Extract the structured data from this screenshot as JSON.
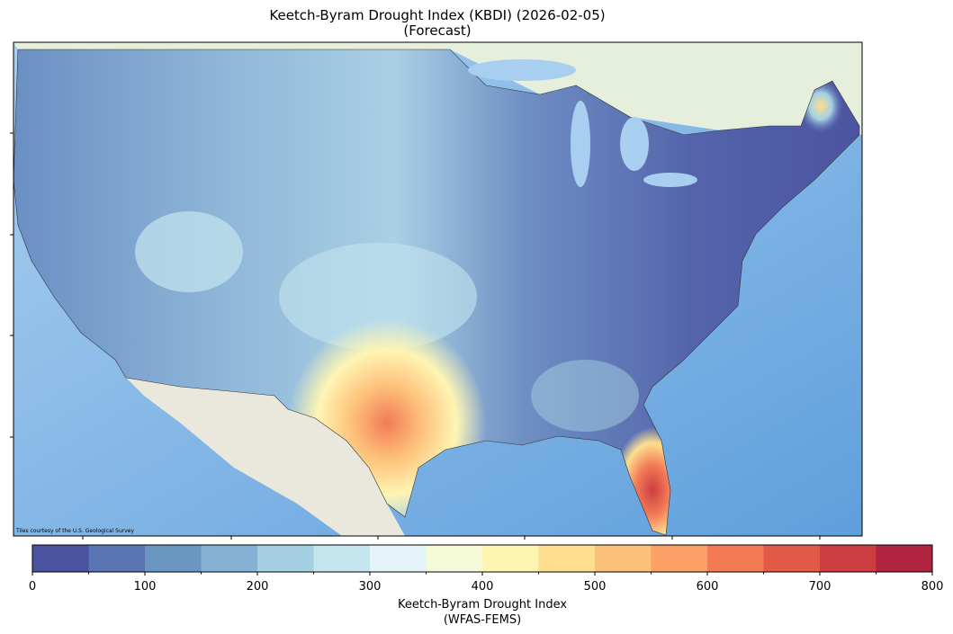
{
  "title": [
    "Keetch-Byram Drought Index (KBDI) (2026-02-05)",
    "(Forecast)"
  ],
  "map": {
    "attribution": "Tiles courtesy of the U.S. Geological Survey"
  },
  "colorbar": {
    "label": [
      "Keetch-Byram Drought Index",
      "(WFAS-FEMS)"
    ],
    "lim": [
      0,
      800
    ],
    "bins": [
      0,
      50,
      100,
      150,
      200,
      250,
      300,
      350,
      400,
      450,
      500,
      550,
      600,
      650,
      700,
      750,
      800
    ],
    "colors": [
      "#4b54a1",
      "#5a74b4",
      "#6a96c2",
      "#86b3d5",
      "#a5d0e4",
      "#c5e5ef",
      "#e3f3f7",
      "#f5fad8",
      "#fef5b3",
      "#fedf90",
      "#fdc07a",
      "#fba066",
      "#f27b55",
      "#e25a47",
      "#cd3d42",
      "#b02440"
    ],
    "ticks": [
      0,
      100,
      200,
      300,
      400,
      500,
      600,
      700,
      800
    ]
  }
}
